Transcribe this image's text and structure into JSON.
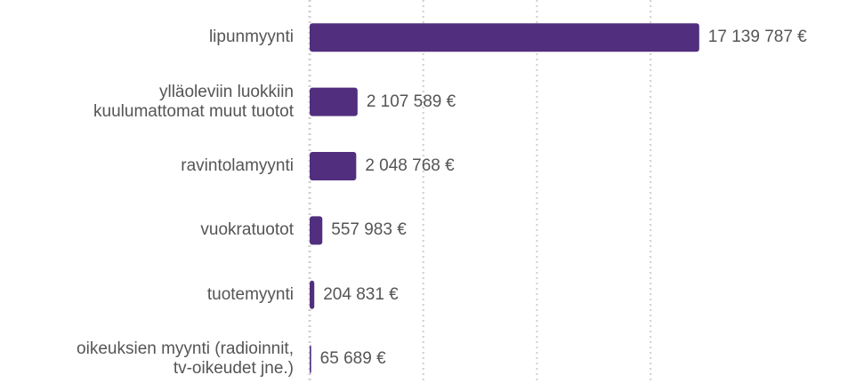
{
  "chart_data": {
    "type": "barh",
    "categories": [
      "lipunmyynti",
      "ylläoleviin luokkiin\nkuulumattomat muut tuotot",
      "ravintolamyynti",
      "vuokratuotot",
      "tuotemyynti",
      "oikeuksien myynti (radioinnit,\ntv-oikeudet jne.)"
    ],
    "values": [
      17139787,
      2107589,
      2048768,
      557983,
      204831,
      65689
    ],
    "value_labels": [
      "17 139 787 €",
      "2 107 589 €",
      "2 048 768 €",
      "557 983 €",
      "204 831 €",
      "65 689 €"
    ],
    "color": "#512f7e",
    "xlim": [
      0,
      17500000
    ],
    "xticks": [
      0,
      5000000,
      10000000,
      15000000
    ],
    "grid": true
  }
}
